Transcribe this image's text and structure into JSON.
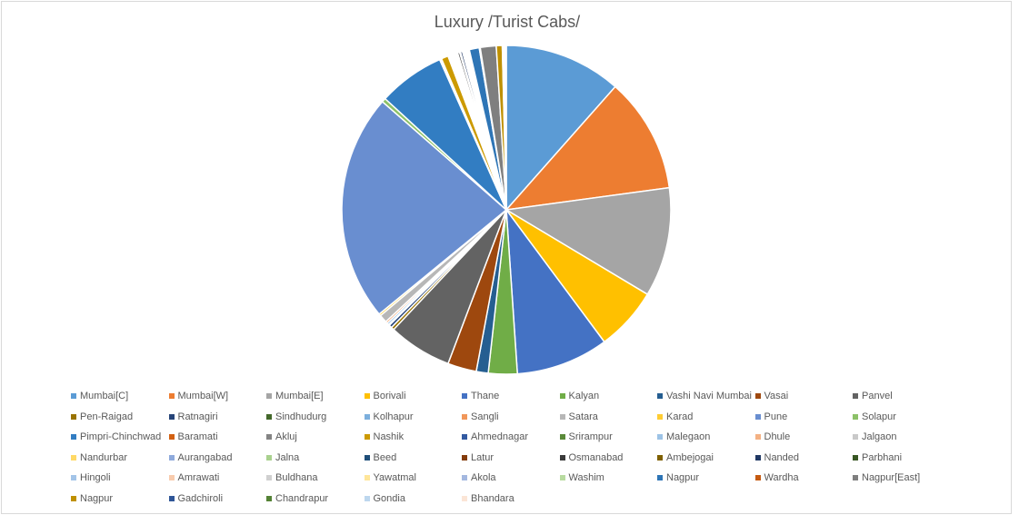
{
  "chart_data": {
    "type": "pie",
    "title": "Luxury /Turist Cabs/",
    "legend_position": "bottom",
    "slices": [
      {
        "name": "Mumbai[C]",
        "value": 11.8,
        "color": "#5B9BD5"
      },
      {
        "name": "Mumbai[W]",
        "value": 11.6,
        "color": "#ED7D31"
      },
      {
        "name": "Mumbai[E]",
        "value": 11.0,
        "color": "#A5A5A5"
      },
      {
        "name": "Borivali",
        "value": 6.4,
        "color": "#FFC000"
      },
      {
        "name": "Thane",
        "value": 9.3,
        "color": "#4472C4"
      },
      {
        "name": "Kalyan",
        "value": 2.9,
        "color": "#70AD47"
      },
      {
        "name": "Vashi Navi Mumbai",
        "value": 1.2,
        "color": "#255E91"
      },
      {
        "name": "Vasai",
        "value": 2.9,
        "color": "#9E480E"
      },
      {
        "name": "Panvel",
        "value": 6.4,
        "color": "#636363"
      },
      {
        "name": "Pen-Raigad",
        "value": 0.3,
        "color": "#997300"
      },
      {
        "name": "Ratnagiri",
        "value": 0.3,
        "color": "#264478"
      },
      {
        "name": "Sindhudurg",
        "value": 0.1,
        "color": "#43682B"
      },
      {
        "name": "Kolhapur",
        "value": 0.2,
        "color": "#7CAFDD"
      },
      {
        "name": "Sangli",
        "value": 0.2,
        "color": "#F1975A"
      },
      {
        "name": "Satara",
        "value": 0.8,
        "color": "#B7B7B7"
      },
      {
        "name": "Karad",
        "value": 0.2,
        "color": "#FFCD33"
      },
      {
        "name": "Pune",
        "value": 22.9,
        "color": "#698ED0"
      },
      {
        "name": "Solapur",
        "value": 0.4,
        "color": "#8CC168"
      },
      {
        "name": "Pimpri-Chinchwad",
        "value": 6.7,
        "color": "#327DC2"
      },
      {
        "name": "Baramati",
        "value": 0.1,
        "color": "#D26012"
      },
      {
        "name": "Akluj",
        "value": 0.1,
        "color": "#848484"
      },
      {
        "name": "Nashik",
        "value": 0.7,
        "color": "#CC9A00"
      },
      {
        "name": "Ahmednagar",
        "value": 0.1,
        "color": "#335AA1"
      },
      {
        "name": "Srirampur",
        "value": 0.1,
        "color": "#5A8A39"
      },
      {
        "name": "Malegaon",
        "value": 0.1,
        "color": "#9DC3E6"
      },
      {
        "name": "Dhule",
        "value": 0.1,
        "color": "#F4B183"
      },
      {
        "name": "Jalgaon",
        "value": 0.1,
        "color": "#C9C9C9"
      },
      {
        "name": "Nandurbar",
        "value": 0.1,
        "color": "#FFD966"
      },
      {
        "name": "Aurangabad",
        "value": 0.1,
        "color": "#8FAADC"
      },
      {
        "name": "Jalna",
        "value": 0.1,
        "color": "#A9D18E"
      },
      {
        "name": "Beed",
        "value": 0.1,
        "color": "#1F4E79"
      },
      {
        "name": "Latur",
        "value": 0.1,
        "color": "#843C0C"
      },
      {
        "name": "Osmanabad",
        "value": 0.2,
        "color": "#3A3A3A"
      },
      {
        "name": "Ambejogai",
        "value": 0.1,
        "color": "#7F6000"
      },
      {
        "name": "Nanded",
        "value": 0.2,
        "color": "#203864"
      },
      {
        "name": "Parbhani",
        "value": 0.1,
        "color": "#385723"
      },
      {
        "name": "Hingoli",
        "value": 0.1,
        "color": "#A3C4E8"
      },
      {
        "name": "Amrawati",
        "value": 0.1,
        "color": "#F8CBAD"
      },
      {
        "name": "Buldhana",
        "value": 0.1,
        "color": "#D0D0D0"
      },
      {
        "name": "Yawatmal",
        "value": 0.1,
        "color": "#FFE699"
      },
      {
        "name": "Akola",
        "value": 0.1,
        "color": "#A4B8E0"
      },
      {
        "name": "Washim",
        "value": 0.1,
        "color": "#B8DBA0"
      },
      {
        "name": "Nagpur",
        "value": 1.0,
        "color": "#2E75B6"
      },
      {
        "name": "Wardha",
        "value": 0.1,
        "color": "#C55A11"
      },
      {
        "name": "Nagpur[East]",
        "value": 1.6,
        "color": "#7F7F7F"
      },
      {
        "name": "Nagpur",
        "value": 0.6,
        "color": "#BF9000"
      },
      {
        "name": "Gadchiroli",
        "value": 0.1,
        "color": "#2F5597"
      },
      {
        "name": "Chandrapur",
        "value": 0.1,
        "color": "#548235"
      },
      {
        "name": "Gondia",
        "value": 0.1,
        "color": "#BDD7EE"
      },
      {
        "name": "Bhandara",
        "value": 0.1,
        "color": "#FBE5D6"
      }
    ]
  }
}
